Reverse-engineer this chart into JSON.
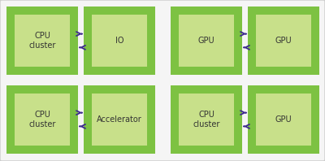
{
  "background_color": "#f5f5f5",
  "outer_box_color": "#7dc242",
  "inner_box_color": "#c8e08a",
  "border_color": "#cccccc",
  "arrow_color": "#3d2b8e",
  "text_color": "#333333",
  "pairs": [
    {
      "left": "CPU\ncluster",
      "right": "IO",
      "col": 0,
      "row": 0
    },
    {
      "left": "GPU",
      "right": "GPU",
      "col": 1,
      "row": 0
    },
    {
      "left": "CPU\ncluster",
      "right": "Accelerator",
      "col": 0,
      "row": 1
    },
    {
      "left": "CPU\ncluster",
      "right": "GPU",
      "col": 1,
      "row": 1
    }
  ],
  "fig_width": 4.0,
  "fig_height": 1.98,
  "dpi": 100
}
